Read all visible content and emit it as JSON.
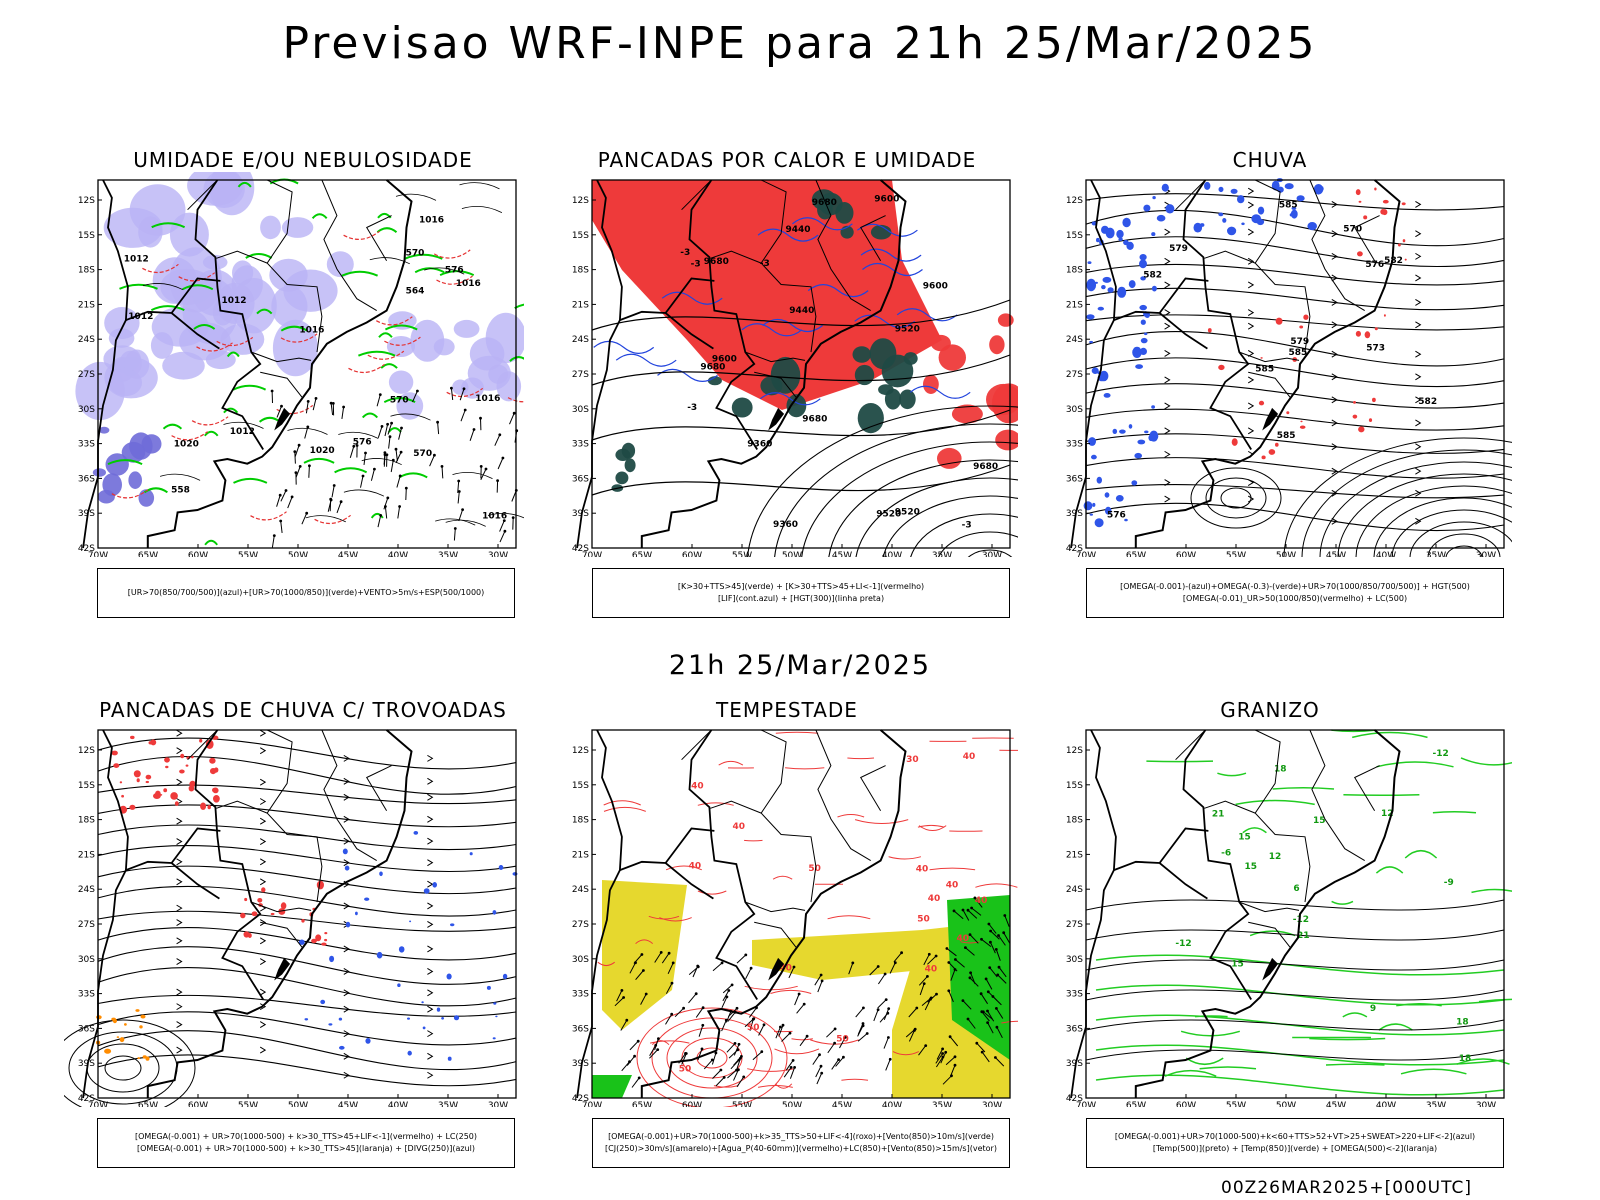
{
  "title": "Previsao WRF-INPE  para 21h 25/Mar/2025",
  "row_title": "21h 25/Mar/2025",
  "footer": "00Z26MAR2025+[000UTC]",
  "lat_labels": [
    "12S",
    "15S",
    "18S",
    "21S",
    "24S",
    "27S",
    "30S",
    "33S",
    "36S",
    "39S",
    "42S"
  ],
  "lon_labels": [
    "70W",
    "65W",
    "60W",
    "55W",
    "50W",
    "45W",
    "40W",
    "35W",
    "30W"
  ],
  "panels": [
    {
      "title": "UMIDADE E/OU NEBULOSIDADE",
      "legend": [
        "[UR>70(850/700/500)](azul)+[UR>70(1000/850)](verde)+VENTO>5m/s+ESP(500/1000)"
      ],
      "contour_labels": [
        "1012",
        "1012",
        "1012",
        "1016",
        "1016",
        "1016",
        "1016",
        "1012",
        "1016",
        "1020",
        "1020",
        "576",
        "576",
        "570",
        "570",
        "564",
        "558",
        "570"
      ]
    },
    {
      "title": "PANCADAS POR CALOR E UMIDADE",
      "legend": [
        "[K>30+TTS>45](verde) + [K>30+TTS>45+LI<-1](vermelho)",
        "[LIF](cont.azul) + [HGT(300)](linha preta)"
      ],
      "contour_labels": [
        "9680",
        "9680",
        "9680",
        "9680",
        "9680",
        "9600",
        "9600",
        "9600",
        "9520",
        "9520",
        "9520",
        "9440",
        "9440",
        "9360",
        "9360",
        "-3",
        "-3",
        "-3",
        "-3",
        "-3"
      ]
    },
    {
      "title": "CHUVA",
      "legend": [
        "[OMEGA(-0.001)-(azul)+OMEGA(-0.3)-(verde)+UR>70(1000/850/700/500)] + HGT(500)",
        "[OMEGA(-0.01)_UR>50(1000/850)(vermelho) + LC(500)"
      ],
      "contour_labels": [
        "585",
        "585",
        "585",
        "585",
        "582",
        "582",
        "582",
        "579",
        "579",
        "576",
        "576",
        "573",
        "570"
      ]
    },
    {
      "title": "PANCADAS DE CHUVA C/ TROVOADAS",
      "legend": [
        "[OMEGA(-0.001) + UR>70(1000-500) + k>30_TTS>45+LIF<-1](vermelho) + LC(250)",
        "[OMEGA(-0.001) + UR>70(1000-500) + k>30_TTS>45](laranja) + [DIVG(250)](azul)"
      ],
      "contour_labels": []
    },
    {
      "title": "TEMPESTADE",
      "legend": [
        "[OMEGA(-0.001)+UR>70(1000-500)+k>35_TTS>50+LIF<-4](roxo)+[Vento(850)>10m/s](verde)",
        "[CJ(250)>30m/s](amarelo)+[Agua_P(40-60mm)](vermelho)+LC(850)+[Vento(850)>15m/s](vetor)"
      ],
      "contour_labels": [
        "50",
        "40",
        "50",
        "40",
        "50",
        "40",
        "40",
        "40",
        "50",
        "40",
        "40",
        "40",
        "30",
        "40",
        "50",
        "40",
        "40"
      ]
    },
    {
      "title": "GRANIZO",
      "legend": [
        "[OMEGA(-0.001)+UR>70(1000-500)+k<60+TTS>52+VT>25+SWEAT>220+LIF<-2](azul)",
        "[Temp(500)](preto) + [Temp(850)](verde) + [OMEGA(500)<-2](laranja)"
      ],
      "contour_labels": [
        "15",
        "21",
        "18",
        "15",
        "18",
        "15",
        "12",
        "9",
        "6",
        "-6",
        "-9",
        "-12",
        "-12",
        "-12",
        "12",
        "15",
        "18",
        "21"
      ]
    }
  ]
}
